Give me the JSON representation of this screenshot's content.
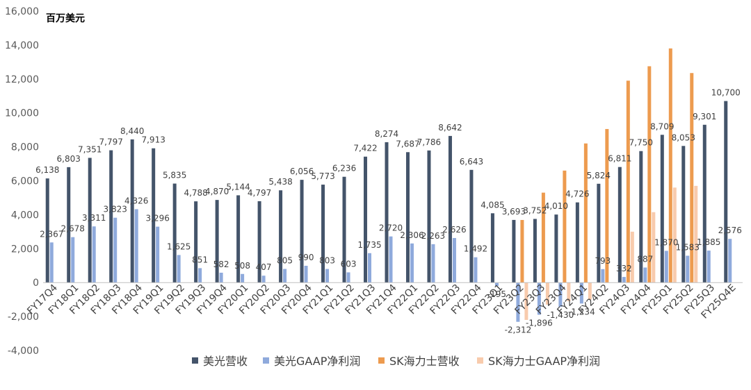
{
  "chart_data": {
    "type": "bar",
    "unit_label": "百万美元",
    "categories": [
      "FY17Q4",
      "FY18Q1",
      "FY18Q2",
      "FY18Q3",
      "FY18Q4",
      "FY19Q1",
      "FY19Q2",
      "FY19Q3",
      "FY19Q4",
      "FY20Q1",
      "FY20Q2",
      "FY20Q3",
      "FY20Q4",
      "FY21Q1",
      "FY21Q2",
      "FY21Q3",
      "FY21Q4",
      "FY22Q1",
      "FY22Q2",
      "FY22Q3",
      "FY22Q4",
      "FY23Q1",
      "FY23Q2",
      "FY23Q3",
      "FY23Q4",
      "FY24Q1",
      "FY24Q2",
      "FY24Q3",
      "FY24Q4",
      "FY25Q1",
      "FY25Q2",
      "FY25Q3",
      "FY25Q4E"
    ],
    "ylim": [
      -4000,
      16000
    ],
    "yticks": [
      -4000,
      -2000,
      0,
      2000,
      4000,
      6000,
      8000,
      10000,
      12000,
      14000,
      16000
    ],
    "ytick_labels": [
      "-4,000",
      "-2,000",
      "0",
      "2,000",
      "4,000",
      "6,000",
      "8,000",
      "10,000",
      "12,000",
      "14,000",
      "16,000"
    ],
    "legend_position": "bottom",
    "grid": false,
    "series": [
      {
        "name": "美光营收",
        "color": "#44546A",
        "values": [
          6138,
          6803,
          7351,
          7797,
          8440,
          7913,
          5835,
          4788,
          4870,
          5144,
          4797,
          5438,
          6056,
          5773,
          6236,
          7422,
          8274,
          7687,
          7786,
          8642,
          6643,
          4085,
          3693,
          3752,
          4010,
          4726,
          5824,
          6811,
          7750,
          8709,
          8053,
          9301,
          10700
        ],
        "labels": [
          "6,138",
          "6,803",
          "7,351",
          "7,797",
          "8,440",
          "7,913",
          "5,835",
          "4,788",
          "4,870",
          "5,144",
          "4,797",
          "5,438",
          "6,056",
          "5,773",
          "6,236",
          "7,422",
          "8,274",
          "7,687",
          "7,786",
          "8,642",
          "6,643",
          "4,085",
          "3,693",
          "3,752",
          "4,010",
          "4,726",
          "5,824",
          "6,811",
          "7,750",
          "8,709",
          "8,053",
          "9,301",
          "10,700"
        ]
      },
      {
        "name": "美光GAAP净利润",
        "color": "#8FAADC",
        "values": [
          2367,
          2678,
          3311,
          3823,
          4326,
          3296,
          1625,
          851,
          582,
          508,
          407,
          805,
          990,
          803,
          603,
          1735,
          2720,
          2306,
          2263,
          2626,
          1492,
          -195,
          -2312,
          -1896,
          -1430,
          -1234,
          793,
          332,
          887,
          1870,
          1583,
          1885,
          2576
        ],
        "labels": [
          "2,367",
          "2,678",
          "3,311",
          "3,823",
          "4,326",
          "3,296",
          "1,625",
          "851",
          "582",
          "508",
          "407",
          "805",
          "990",
          "803",
          "603",
          "1,735",
          "2,720",
          "2,306",
          "2,263",
          "2,626",
          "1,492",
          "-195",
          "-2,312",
          "-1,896",
          "-1,430",
          "-1,234",
          "793",
          "332",
          "887",
          "1,870",
          "1,583",
          "1,885",
          "2,576"
        ]
      },
      {
        "name": "SK海力士营收",
        "color": "#ED9B4F",
        "values": [
          null,
          null,
          null,
          null,
          null,
          null,
          null,
          null,
          null,
          null,
          null,
          null,
          null,
          null,
          null,
          null,
          null,
          null,
          null,
          null,
          null,
          null,
          3690,
          5300,
          6600,
          8200,
          9050,
          11900,
          12750,
          13800,
          12350,
          null,
          null
        ]
      },
      {
        "name": "SK海力士GAAP净利润",
        "color": "#F8CBAD",
        "values": [
          null,
          null,
          null,
          null,
          null,
          null,
          null,
          null,
          null,
          null,
          null,
          null,
          null,
          null,
          null,
          null,
          null,
          null,
          null,
          null,
          null,
          null,
          -2200,
          -1300,
          -1100,
          -1000,
          null,
          3000,
          4150,
          5600,
          5700,
          null,
          null
        ]
      }
    ]
  }
}
